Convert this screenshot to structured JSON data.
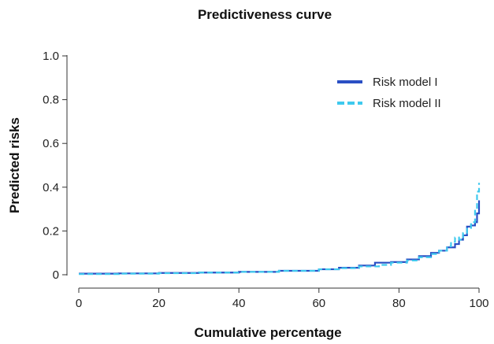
{
  "chart_data": {
    "type": "line",
    "title": "Predictiveness curve",
    "xlabel": "Cumulative percentage",
    "ylabel": "Predicted risks",
    "xlim": [
      0,
      100
    ],
    "ylim": [
      0,
      1.0
    ],
    "x_ticks": [
      0,
      20,
      40,
      60,
      80,
      100
    ],
    "x_tick_labels": [
      "0",
      "20",
      "40",
      "60",
      "80",
      "100"
    ],
    "y_ticks": [
      0,
      0.2,
      0.4,
      0.6,
      0.8,
      1.0
    ],
    "y_tick_labels": [
      "0",
      "0.2",
      "0.4",
      "0.6",
      "0.8",
      "1.0"
    ],
    "grid": false,
    "legend_position": "top-right",
    "series": [
      {
        "name": "Risk model I",
        "color": "#2a4fc4",
        "dash": "solid",
        "x": [
          0,
          10,
          20,
          30,
          40,
          50,
          60,
          65,
          70,
          74,
          78,
          82,
          85,
          88,
          90,
          92,
          94,
          95,
          96,
          97,
          98,
          99,
          99.5,
          100
        ],
        "y": [
          0.005,
          0.006,
          0.008,
          0.01,
          0.013,
          0.018,
          0.025,
          0.032,
          0.042,
          0.055,
          0.058,
          0.07,
          0.085,
          0.1,
          0.11,
          0.125,
          0.14,
          0.16,
          0.18,
          0.22,
          0.225,
          0.24,
          0.28,
          0.34
        ]
      },
      {
        "name": "Risk model II",
        "color": "#3fc9ee",
        "dash": "dashed",
        "x": [
          0,
          10,
          20,
          30,
          40,
          50,
          60,
          65,
          70,
          75,
          78,
          82,
          85,
          88,
          90,
          92,
          93,
          94,
          95,
          96,
          97,
          98,
          99,
          99.5,
          100
        ],
        "y": [
          0.003,
          0.005,
          0.007,
          0.01,
          0.013,
          0.018,
          0.025,
          0.03,
          0.038,
          0.045,
          0.055,
          0.065,
          0.08,
          0.095,
          0.11,
          0.13,
          0.15,
          0.17,
          0.16,
          0.19,
          0.21,
          0.24,
          0.3,
          0.38,
          0.42
        ]
      }
    ]
  }
}
